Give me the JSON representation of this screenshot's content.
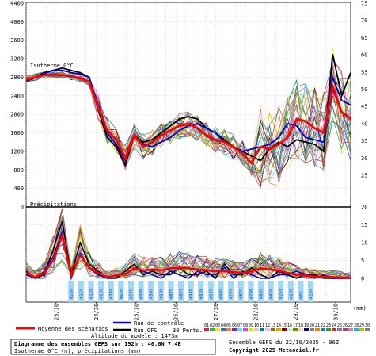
{
  "chart_data": {
    "type": "line",
    "title": "Diagramme des ensembles GEFS sur 192h : 46.6N 7.4E",
    "subtitle": "Isotherme 0°C (m), précipitations (mm)",
    "left_axis": {
      "ticks": [
        "4400",
        "4000",
        "3600",
        "3200",
        "2800",
        "2400",
        "2000",
        "1600",
        "1200",
        "800",
        "400",
        "0"
      ],
      "range": [
        0,
        4400
      ]
    },
    "right_axis": {
      "ticks": [
        "75",
        "70",
        "65",
        "60",
        "55",
        "50",
        "45",
        "40",
        "35",
        "30",
        "25",
        "20",
        "15",
        "10",
        "5",
        "0"
      ],
      "unit": "(mm)",
      "freezing_range": [
        25,
        75
      ],
      "precip_range": [
        0,
        20
      ]
    },
    "x_steps": 65,
    "date_labels": [
      {
        "label": "23/10",
        "step": 6
      },
      {
        "label": "24/10",
        "step": 14
      },
      {
        "label": "25/10",
        "step": 22
      },
      {
        "label": "26/10",
        "step": 30
      },
      {
        "label": "27/10",
        "step": 38
      },
      {
        "label": "28/10",
        "step": 46
      },
      {
        "label": "29/10",
        "step": 54
      },
      {
        "label": "30/10",
        "step": 62
      }
    ],
    "section_labels": {
      "freezing": "Isotherme 0°C",
      "precip": "Précipitations"
    },
    "snow_percent": [
      "53%",
      "16%",
      "16%",
      "16%",
      "74%",
      "68%",
      "77%",
      "98%",
      "94%",
      "90%",
      "87%",
      "87%",
      "97%",
      "96%",
      "97%",
      "94%",
      "77%",
      "84%",
      "79%",
      "65%",
      "45%",
      "23%",
      "13%",
      "6%",
      "13%"
    ],
    "snow_percent_start_step": 9,
    "freezing_control": [
      2700,
      2800,
      2880,
      2950,
      2950,
      2900,
      2870,
      2800,
      2200,
      1600,
      1350,
      1000,
      1550,
      1350,
      1300,
      1400,
      1500,
      1650,
      1750,
      1800,
      1700,
      1600,
      1400,
      1300,
      1200,
      1250,
      1300,
      1350,
      1500,
      1800,
      1750,
      1500,
      1450,
      1400,
      2800,
      2300,
      2200
    ],
    "freezing_gfs": [
      2700,
      2800,
      2900,
      2950,
      3000,
      2950,
      2900,
      2800,
      2100,
      1500,
      1300,
      900,
      1550,
      1400,
      1450,
      1600,
      1750,
      1900,
      1950,
      1900,
      1700,
      1600,
      1450,
      1300,
      1200,
      1100,
      1000,
      1250,
      1400,
      1300,
      1450,
      1400,
      1350,
      1200,
      3300,
      2400,
      2900
    ],
    "freezing_mean": [
      2750,
      2800,
      2850,
      2850,
      2850,
      2820,
      2780,
      2700,
      2150,
      1650,
      1450,
      1050,
      1550,
      1300,
      1400,
      1550,
      1650,
      1750,
      1800,
      1700,
      1550,
      1450,
      1400,
      1300,
      1150,
      950,
      1300,
      1250,
      1350,
      1500,
      1900,
      1850,
      1700,
      1600,
      2600,
      2050,
      1900
    ],
    "precip_control": [
      1,
      0,
      2,
      6,
      13,
      0,
      7,
      3,
      1,
      0,
      1,
      1,
      3,
      2,
      1,
      0,
      2,
      1,
      0,
      2,
      1,
      1,
      3,
      0,
      2,
      1,
      0,
      0,
      1,
      1,
      2,
      1,
      0,
      1,
      0,
      0,
      0
    ],
    "precip_gfs": [
      2,
      0,
      1,
      8,
      16,
      1,
      10,
      4,
      2,
      0,
      0,
      2,
      4,
      1,
      2,
      1,
      1,
      3,
      1,
      1,
      2,
      0,
      4,
      1,
      1,
      3,
      1,
      0,
      2,
      1,
      0,
      1,
      1,
      0,
      0,
      0,
      0
    ],
    "precip_mean": [
      1.5,
      0.3,
      1.5,
      5,
      12,
      0.8,
      6.5,
      3,
      1.5,
      0.3,
      0.8,
      1.2,
      2.8,
      2.2,
      2.5,
      2.2,
      2.8,
      3,
      2.8,
      2.5,
      2.2,
      2,
      2,
      1.8,
      1.5,
      2,
      2.8,
      2.5,
      2.2,
      1.5,
      1,
      0.8,
      0.5,
      0.5,
      0.3,
      0.2,
      0.1
    ],
    "legend": {
      "mean": "Moyenne des scénarios",
      "control": "Run de contrôle",
      "gfs": "Run GFS",
      "perts": "30 Perts.",
      "model_alt": "Altitude du modele : 1473m",
      "pert_ids": [
        "01",
        "02",
        "03",
        "04",
        "05",
        "06",
        "07",
        "08",
        "09",
        "10",
        "11",
        "12",
        "13",
        "14",
        "15",
        "16",
        "17",
        "18",
        "19",
        "20",
        "21",
        "22",
        "23",
        "24",
        "25",
        "26",
        "27",
        "28",
        "29",
        "30"
      ],
      "pert_colors": [
        "#e6194b",
        "#3cb44b",
        "#ffe119",
        "#4363d8",
        "#f58231",
        "#911eb4",
        "#46f0f0",
        "#f032e6",
        "#bcf60c",
        "#fabebe",
        "#008080",
        "#e6beff",
        "#9a6324",
        "#c8b400",
        "#800000",
        "#aaffc3",
        "#808000",
        "#ffd8b1",
        "#000075",
        "#808080",
        "#ff7f0e",
        "#1f77b4",
        "#2ca02c",
        "#d62728",
        "#9467bd",
        "#8c564b",
        "#e377c2",
        "#17becf",
        "#bcbd22",
        "#7f7f7f"
      ]
    },
    "footer": {
      "ensemble_run": "Ensemble GEFS du 22/10/2025 - 06Z",
      "copyright": "Copyright 2025 Meteociel.fr"
    },
    "colors": {
      "mean": "#ff0000",
      "control": "#0000cc",
      "gfs": "#000000",
      "snow_band": "#9fd8f7"
    }
  }
}
